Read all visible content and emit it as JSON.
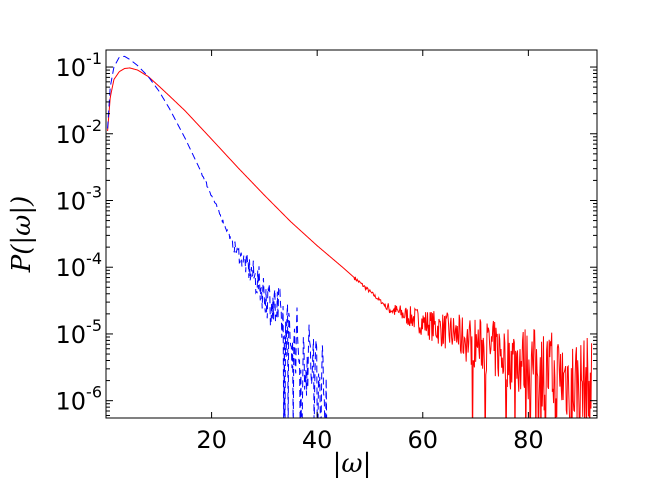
{
  "chart_data": {
    "type": "line",
    "title": "",
    "xlabel": "|ω|",
    "ylabel": "P(|ω|)",
    "xlim": [
      0,
      93
    ],
    "ylim": [
      5.5e-07,
      0.18
    ],
    "yscale": "log",
    "grid": false,
    "x_ticks": [
      20,
      40,
      60,
      80
    ],
    "x_tick_labels": [
      "20",
      "40",
      "60",
      "80"
    ],
    "y_ticks": [
      1e-06,
      1e-05,
      0.0001,
      0.001,
      0.01,
      0.1
    ],
    "y_tick_labels": [
      {
        "base": "10",
        "exp": "-6"
      },
      {
        "base": "10",
        "exp": "-5"
      },
      {
        "base": "10",
        "exp": "-4"
      },
      {
        "base": "10",
        "exp": "-3"
      },
      {
        "base": "10",
        "exp": "-2"
      },
      {
        "base": "10",
        "exp": "-1"
      }
    ],
    "series": [
      {
        "color": "#ff0000",
        "style": "solid",
        "x": [
          0.3,
          0.8,
          1.5,
          2.5,
          3.5,
          4.5,
          6,
          8,
          10,
          12,
          15,
          20,
          25,
          30,
          35,
          40,
          45,
          50,
          55,
          60,
          62
        ],
        "y": [
          0.011,
          0.035,
          0.065,
          0.085,
          0.095,
          0.097,
          0.09,
          0.072,
          0.052,
          0.037,
          0.022,
          0.0083,
          0.0031,
          0.0012,
          0.00048,
          0.00021,
          9.7e-05,
          4.3e-05,
          1.9e-05,
          7.8e-06,
          5.8e-06
        ],
        "noisy_tail": {
          "x_start": 53,
          "x_end": 92,
          "y_start": 2.5e-05,
          "y_end": 1.5e-06,
          "floor": 5.5e-07
        }
      },
      {
        "color": "#0000ff",
        "style": "dashed",
        "x": [
          0.3,
          0.8,
          1.5,
          2.5,
          3.5,
          4.5,
          6,
          8,
          10,
          12,
          15,
          18,
          20,
          22,
          25,
          28,
          31,
          34,
          37
        ],
        "y": [
          0.012,
          0.05,
          0.1,
          0.14,
          0.145,
          0.13,
          0.105,
          0.072,
          0.044,
          0.024,
          0.0085,
          0.0027,
          0.0012,
          0.00052,
          0.00015,
          4.7e-05,
          1.6e-05,
          5.5e-06,
          2.3e-06
        ],
        "noisy_tail": {
          "x_start": 24,
          "x_end": 42,
          "y_start": 0.00022,
          "y_end": 1.5e-06,
          "floor": 1.1e-06
        }
      }
    ]
  }
}
